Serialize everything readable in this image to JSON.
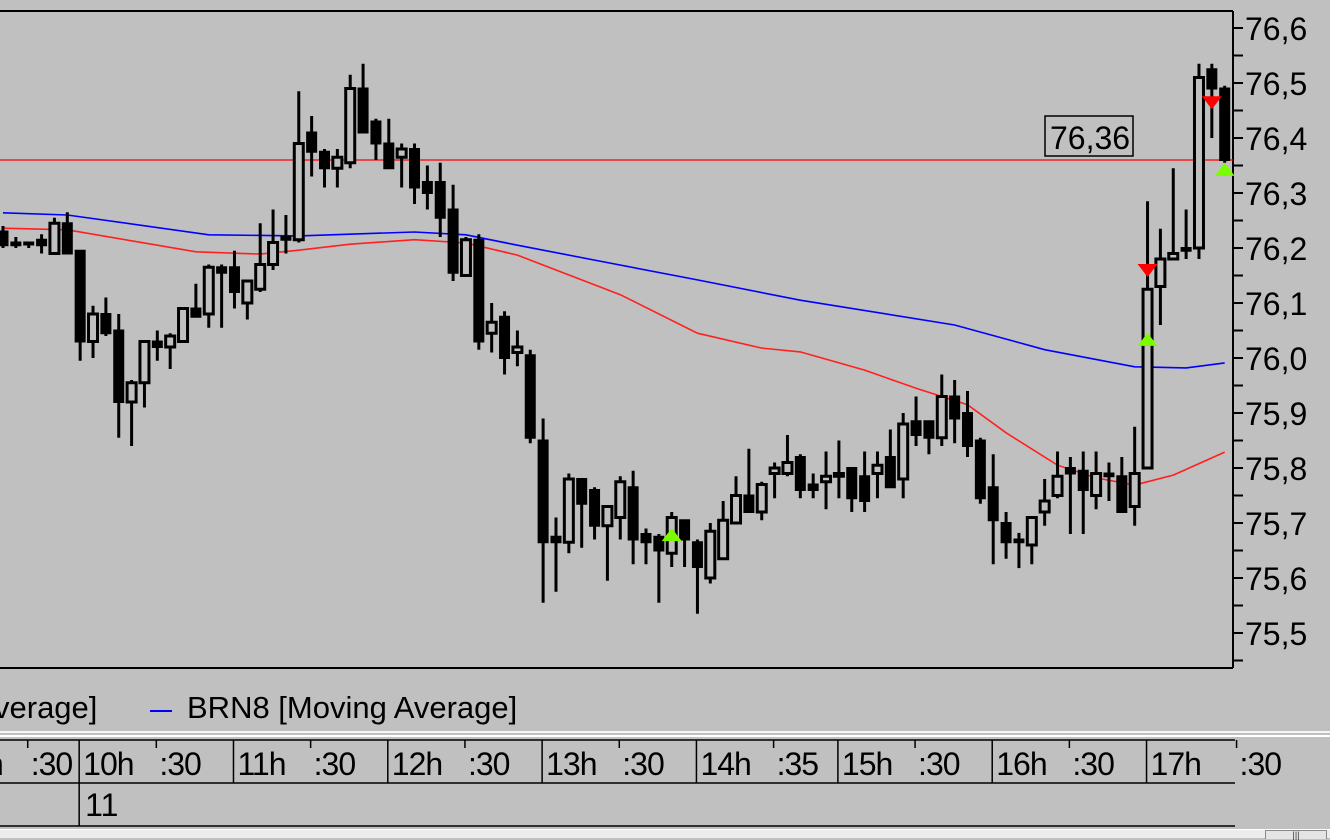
{
  "colors": {
    "background": "#c0c0c0",
    "candle": "#000000",
    "last_price_line": "#ff0000",
    "ma_red": "#ff2020",
    "ma_blue": "#0000ff",
    "signal_up": "#7cfc00",
    "signal_down": "#ff0000"
  },
  "chart_data": {
    "type": "candlestick",
    "instrument": "BRN8",
    "ylim": [
      75.45,
      76.63
    ],
    "grid": false,
    "candle_fields": [
      "open",
      "high",
      "low",
      "close"
    ],
    "candles": [
      [
        76.23,
        76.24,
        76.2,
        76.205
      ],
      [
        76.21,
        76.22,
        76.2,
        76.205
      ],
      [
        76.21,
        76.21,
        76.2,
        76.21
      ],
      [
        76.215,
        76.225,
        76.19,
        76.205
      ],
      [
        76.19,
        76.255,
        76.19,
        76.245
      ],
      [
        76.245,
        76.265,
        76.19,
        76.19
      ],
      [
        76.195,
        76.195,
        75.995,
        76.03
      ],
      [
        76.03,
        76.095,
        76.0,
        76.08
      ],
      [
        76.08,
        76.11,
        76.04,
        76.045
      ],
      [
        76.05,
        76.08,
        75.855,
        75.92
      ],
      [
        75.92,
        75.96,
        75.84,
        75.955
      ],
      [
        75.955,
        76.03,
        75.91,
        76.03
      ],
      [
        76.03,
        76.05,
        75.995,
        76.02
      ],
      [
        76.02,
        76.045,
        75.98,
        76.04
      ],
      [
        76.03,
        76.09,
        76.03,
        76.09
      ],
      [
        76.09,
        76.135,
        76.075,
        76.075
      ],
      [
        76.08,
        76.17,
        76.055,
        76.165
      ],
      [
        76.165,
        76.17,
        76.055,
        76.155
      ],
      [
        76.165,
        76.195,
        76.09,
        76.12
      ],
      [
        76.1,
        76.14,
        76.07,
        76.14
      ],
      [
        76.125,
        76.245,
        76.12,
        76.17
      ],
      [
        76.17,
        76.27,
        76.16,
        76.21
      ],
      [
        76.22,
        76.26,
        76.19,
        76.215
      ],
      [
        76.215,
        76.485,
        76.21,
        76.39
      ],
      [
        76.41,
        76.44,
        76.33,
        76.375
      ],
      [
        76.375,
        76.38,
        76.31,
        76.345
      ],
      [
        76.345,
        76.38,
        76.31,
        76.365
      ],
      [
        76.355,
        76.515,
        76.345,
        76.49
      ],
      [
        76.49,
        76.535,
        76.41,
        76.41
      ],
      [
        76.43,
        76.435,
        76.36,
        76.39
      ],
      [
        76.39,
        76.435,
        76.345,
        76.345
      ],
      [
        76.365,
        76.39,
        76.31,
        76.38
      ],
      [
        76.38,
        76.39,
        76.28,
        76.31
      ],
      [
        76.32,
        76.35,
        76.27,
        76.3
      ],
      [
        76.32,
        76.355,
        76.22,
        76.255
      ],
      [
        76.27,
        76.315,
        76.14,
        76.155
      ],
      [
        76.15,
        76.22,
        76.15,
        76.215
      ],
      [
        76.215,
        76.225,
        76.015,
        76.03
      ],
      [
        76.045,
        76.1,
        76.01,
        76.065
      ],
      [
        76.075,
        76.085,
        75.97,
        76.0
      ],
      [
        76.01,
        76.05,
        75.985,
        76.02
      ],
      [
        76.005,
        76.015,
        75.845,
        75.855
      ],
      [
        75.85,
        75.89,
        75.555,
        75.665
      ],
      [
        75.675,
        75.71,
        75.575,
        75.665
      ],
      [
        75.665,
        75.79,
        75.645,
        75.78
      ],
      [
        75.78,
        75.78,
        75.655,
        75.735
      ],
      [
        75.76,
        75.765,
        75.67,
        75.695
      ],
      [
        75.695,
        75.73,
        75.595,
        75.73
      ],
      [
        75.71,
        75.785,
        75.67,
        75.775
      ],
      [
        75.765,
        75.795,
        75.625,
        75.67
      ],
      [
        75.68,
        75.69,
        75.625,
        75.665
      ],
      [
        75.675,
        75.68,
        75.555,
        75.65
      ],
      [
        75.645,
        75.72,
        75.62,
        75.71
      ],
      [
        75.705,
        75.705,
        75.62,
        75.67
      ],
      [
        75.665,
        75.67,
        75.535,
        75.62
      ],
      [
        75.6,
        75.7,
        75.59,
        75.685
      ],
      [
        75.635,
        75.74,
        75.635,
        75.705
      ],
      [
        75.7,
        75.785,
        75.7,
        75.75
      ],
      [
        75.75,
        75.835,
        75.72,
        75.72
      ],
      [
        75.72,
        75.775,
        75.705,
        75.77
      ],
      [
        75.79,
        75.81,
        75.745,
        75.8
      ],
      [
        75.79,
        75.86,
        75.785,
        75.81
      ],
      [
        75.82,
        75.825,
        75.745,
        75.76
      ],
      [
        75.77,
        75.79,
        75.745,
        75.76
      ],
      [
        75.775,
        75.83,
        75.725,
        75.785
      ],
      [
        75.785,
        75.85,
        75.745,
        75.79
      ],
      [
        75.8,
        75.8,
        75.72,
        75.745
      ],
      [
        75.785,
        75.83,
        75.72,
        75.74
      ],
      [
        75.79,
        75.83,
        75.745,
        75.805
      ],
      [
        75.82,
        75.87,
        75.765,
        75.765
      ],
      [
        75.78,
        75.9,
        75.745,
        75.88
      ],
      [
        75.885,
        75.93,
        75.84,
        75.86
      ],
      [
        75.885,
        75.885,
        75.825,
        75.855
      ],
      [
        75.855,
        75.97,
        75.84,
        75.93
      ],
      [
        75.93,
        75.96,
        75.845,
        75.89
      ],
      [
        75.9,
        75.94,
        75.82,
        75.84
      ],
      [
        75.85,
        75.855,
        75.735,
        75.745
      ],
      [
        75.765,
        75.825,
        75.625,
        75.705
      ],
      [
        75.7,
        75.72,
        75.635,
        75.665
      ],
      [
        75.67,
        75.682,
        75.618,
        75.665
      ],
      [
        75.66,
        75.71,
        75.625,
        75.71
      ],
      [
        75.72,
        75.78,
        75.695,
        75.74
      ],
      [
        75.75,
        75.83,
        75.745,
        75.785
      ],
      [
        75.8,
        75.82,
        75.68,
        75.79
      ],
      [
        75.795,
        75.83,
        75.68,
        75.76
      ],
      [
        75.75,
        75.83,
        75.725,
        75.79
      ],
      [
        75.79,
        75.81,
        75.74,
        75.785
      ],
      [
        75.785,
        75.82,
        75.72,
        75.72
      ],
      [
        75.73,
        75.875,
        75.695,
        75.79
      ],
      [
        75.8,
        76.285,
        75.8,
        76.125
      ],
      [
        76.13,
        76.235,
        76.06,
        76.18
      ],
      [
        76.18,
        76.345,
        76.18,
        76.19
      ],
      [
        76.2,
        76.27,
        76.18,
        76.195
      ],
      [
        76.2,
        76.535,
        76.18,
        76.51
      ],
      [
        76.525,
        76.535,
        76.4,
        76.49
      ],
      [
        76.49,
        76.495,
        76.355,
        76.36
      ]
    ],
    "moving_averages": [
      {
        "color": "#ff2020",
        "points": [
          [
            0,
            76.236
          ],
          [
            5,
            76.233
          ],
          [
            12,
            76.205
          ],
          [
            15,
            76.193
          ],
          [
            20,
            76.189
          ],
          [
            23,
            76.196
          ],
          [
            27,
            76.207
          ],
          [
            32,
            76.215
          ],
          [
            36,
            76.209
          ],
          [
            40,
            76.187
          ],
          [
            43,
            76.16
          ],
          [
            48,
            76.115
          ],
          [
            54,
            76.045
          ],
          [
            59,
            76.018
          ],
          [
            62,
            76.011
          ],
          [
            67,
            75.978
          ],
          [
            71,
            75.945
          ],
          [
            75,
            75.915
          ],
          [
            78,
            75.864
          ],
          [
            82,
            75.805
          ],
          [
            85,
            75.782
          ],
          [
            88,
            75.769
          ],
          [
            91,
            75.787
          ],
          [
            95,
            75.829
          ]
        ]
      },
      {
        "name": "BRN8 [Moving Average]",
        "color": "#0000ff",
        "points": [
          [
            0,
            76.264
          ],
          [
            5,
            76.26
          ],
          [
            16,
            76.224
          ],
          [
            23,
            76.222
          ],
          [
            32,
            76.229
          ],
          [
            36,
            76.224
          ],
          [
            40,
            76.205
          ],
          [
            46,
            76.178
          ],
          [
            54,
            76.142
          ],
          [
            62,
            76.105
          ],
          [
            74,
            76.06
          ],
          [
            81,
            76.015
          ],
          [
            88,
            75.984
          ],
          [
            92,
            75.982
          ],
          [
            95,
            75.991
          ]
        ]
      }
    ],
    "last_price": 76.36,
    "last_price_label": "76,36",
    "signals": [
      {
        "bar": 52,
        "type": "up",
        "price": 75.678
      },
      {
        "bar": 89,
        "type": "up",
        "price": 76.033
      },
      {
        "bar": 89,
        "type": "down",
        "price": 76.16
      },
      {
        "bar": 94,
        "type": "down",
        "price": 76.465
      },
      {
        "bar": 95,
        "type": "up",
        "price": 76.342
      }
    ],
    "y_ticks": [
      {
        "value": 76.6,
        "label": "76,6"
      },
      {
        "value": 76.5,
        "label": "76,5"
      },
      {
        "value": 76.4,
        "label": "76,4"
      },
      {
        "value": 76.3,
        "label": "76,3"
      },
      {
        "value": 76.2,
        "label": "76,2"
      },
      {
        "value": 76.1,
        "label": "76,1"
      },
      {
        "value": 76.0,
        "label": "76,0"
      },
      {
        "value": 75.9,
        "label": "75,9"
      },
      {
        "value": 75.8,
        "label": "75,8"
      },
      {
        "value": 75.7,
        "label": "75,7"
      },
      {
        "value": 75.6,
        "label": "75,6"
      },
      {
        "value": 75.5,
        "label": "75,5"
      }
    ],
    "x_labels": [
      {
        "bar": 0,
        "label": "h",
        "kind": "hour"
      },
      {
        "bar": 2,
        "label": ":30",
        "kind": "minute"
      },
      {
        "bar": 6,
        "label": "10h",
        "kind": "hour"
      },
      {
        "bar": 12,
        "label": ":30",
        "kind": "minute"
      },
      {
        "bar": 18,
        "label": "11h",
        "kind": "hour"
      },
      {
        "bar": 24,
        "label": ":30",
        "kind": "minute"
      },
      {
        "bar": 30,
        "label": "12h",
        "kind": "hour"
      },
      {
        "bar": 36,
        "label": ":30",
        "kind": "minute"
      },
      {
        "bar": 42,
        "label": "13h",
        "kind": "hour"
      },
      {
        "bar": 48,
        "label": ":30",
        "kind": "minute"
      },
      {
        "bar": 54,
        "label": "14h",
        "kind": "hour"
      },
      {
        "bar": 60,
        "label": ":35",
        "kind": "minute"
      },
      {
        "bar": 65,
        "label": "15h",
        "kind": "hour"
      },
      {
        "bar": 71,
        "label": ":30",
        "kind": "minute"
      },
      {
        "bar": 77,
        "label": "16h",
        "kind": "hour"
      },
      {
        "bar": 83,
        "label": ":30",
        "kind": "minute"
      },
      {
        "bar": 89,
        "label": "17h",
        "kind": "hour"
      },
      {
        "bar": 96,
        "label": ":30",
        "kind": "minute"
      }
    ],
    "date_labels": [
      {
        "bar": 6,
        "label": "11"
      }
    ]
  },
  "legend": {
    "items": [
      {
        "label": "verage]",
        "color": "#ff2020"
      },
      {
        "label": "BRN8 [Moving Average]",
        "color": "#0000ff"
      }
    ]
  },
  "scrollbar": {
    "grip": "|||"
  }
}
